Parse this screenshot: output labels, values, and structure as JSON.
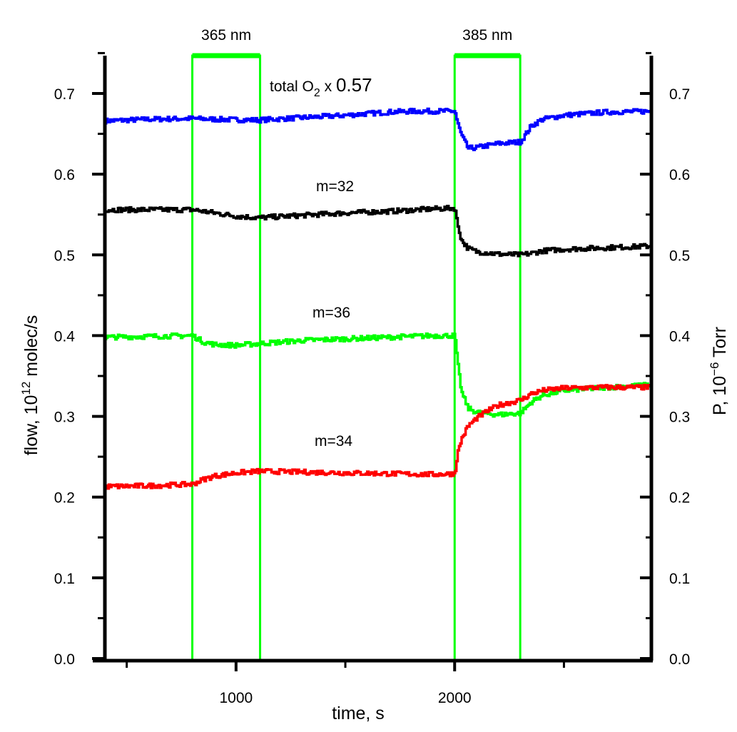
{
  "chart_data": {
    "type": "line",
    "title": "",
    "xlabel": "time, s",
    "ylabel_left": "flow, 10^12 molec/s",
    "ylabel_right": "P, 10^-6 Torr",
    "xlim": [
      400,
      2900
    ],
    "ylim_left": [
      0.0,
      0.75
    ],
    "ylim_right": [
      0.0,
      0.75
    ],
    "x_ticks": [
      {
        "value": 1000,
        "label": "1000"
      },
      {
        "value": 2000,
        "label": "2000"
      }
    ],
    "x_minor_ticks": [
      500,
      1500,
      2500
    ],
    "y_ticks_left": [
      {
        "value": 0.0,
        "label": "0.0"
      },
      {
        "value": 0.1,
        "label": "0.1"
      },
      {
        "value": 0.2,
        "label": "0.2"
      },
      {
        "value": 0.3,
        "label": "0.3"
      },
      {
        "value": 0.4,
        "label": "0.4"
      },
      {
        "value": 0.5,
        "label": "0.5"
      },
      {
        "value": 0.6,
        "label": "0.6"
      },
      {
        "value": 0.7,
        "label": "0.7"
      }
    ],
    "y_ticks_right": [
      {
        "value": 0.0,
        "label": "0.0"
      },
      {
        "value": 0.1,
        "label": "0.1"
      },
      {
        "value": 0.2,
        "label": "0.2"
      },
      {
        "value": 0.3,
        "label": "0.3"
      },
      {
        "value": 0.4,
        "label": "0.4"
      },
      {
        "value": 0.5,
        "label": "0.5"
      },
      {
        "value": 0.6,
        "label": "0.6"
      },
      {
        "value": 0.7,
        "label": "0.7"
      }
    ],
    "grid": false,
    "illumination_periods": [
      {
        "label": "365 nm",
        "start": 800,
        "end": 1110
      },
      {
        "label": "385 nm",
        "start": 2000,
        "end": 2300
      }
    ],
    "series": [
      {
        "name": "total O2 x 0.57",
        "color": "#0000ff",
        "x": [
          400,
          600,
          800,
          900,
          1100,
          1300,
          1500,
          1700,
          1800,
          2000,
          2010,
          2030,
          2060,
          2100,
          2200,
          2300,
          2320,
          2350,
          2400,
          2500,
          2700,
          2900
        ],
        "y": [
          0.666,
          0.668,
          0.669,
          0.668,
          0.667,
          0.67,
          0.673,
          0.677,
          0.678,
          0.678,
          0.665,
          0.648,
          0.632,
          0.633,
          0.638,
          0.64,
          0.648,
          0.66,
          0.668,
          0.673,
          0.677,
          0.678
        ]
      },
      {
        "name": "m=32",
        "color": "#000000",
        "x": [
          400,
          600,
          800,
          900,
          1000,
          1100,
          1300,
          1500,
          1700,
          1900,
          2000,
          2010,
          2030,
          2060,
          2100,
          2200,
          2300,
          2350,
          2400,
          2500,
          2700,
          2900
        ],
        "y": [
          0.556,
          0.556,
          0.556,
          0.552,
          0.548,
          0.546,
          0.549,
          0.552,
          0.554,
          0.557,
          0.558,
          0.54,
          0.518,
          0.508,
          0.504,
          0.501,
          0.5,
          0.502,
          0.505,
          0.507,
          0.509,
          0.511
        ]
      },
      {
        "name": "m=36",
        "color": "#00ff00",
        "x": [
          400,
          600,
          800,
          850,
          900,
          1000,
          1100,
          1300,
          1500,
          1700,
          1900,
          2000,
          2010,
          2030,
          2060,
          2100,
          2200,
          2300,
          2350,
          2400,
          2500,
          2700,
          2900
        ],
        "y": [
          0.398,
          0.399,
          0.4,
          0.392,
          0.389,
          0.388,
          0.39,
          0.394,
          0.396,
          0.398,
          0.4,
          0.4,
          0.37,
          0.33,
          0.31,
          0.305,
          0.302,
          0.304,
          0.318,
          0.326,
          0.332,
          0.336,
          0.339
        ]
      },
      {
        "name": "m=34",
        "color": "#ff0000",
        "x": [
          400,
          600,
          800,
          850,
          900,
          1000,
          1100,
          1300,
          1500,
          1700,
          1900,
          2000,
          2010,
          2030,
          2060,
          2100,
          2150,
          2200,
          2300,
          2350,
          2400,
          2500,
          2700,
          2900
        ],
        "y": [
          0.213,
          0.214,
          0.216,
          0.222,
          0.226,
          0.23,
          0.232,
          0.231,
          0.23,
          0.229,
          0.228,
          0.229,
          0.252,
          0.272,
          0.288,
          0.298,
          0.307,
          0.314,
          0.32,
          0.328,
          0.332,
          0.335,
          0.336,
          0.336
        ]
      }
    ],
    "annotations": [
      {
        "series": "total O2 x 0.57",
        "parts": [
          "total O",
          "2",
          " x ",
          "0.57"
        ]
      },
      {
        "series": "m=32",
        "text": "m=32"
      },
      {
        "series": "m=36",
        "text": "m=36"
      },
      {
        "series": "m=34",
        "text": "m=34"
      }
    ],
    "axis_title_parts": {
      "left": [
        "flow, 10",
        "12",
        " molec/s"
      ],
      "right": [
        "P, 10",
        "−6",
        " Torr"
      ]
    }
  }
}
